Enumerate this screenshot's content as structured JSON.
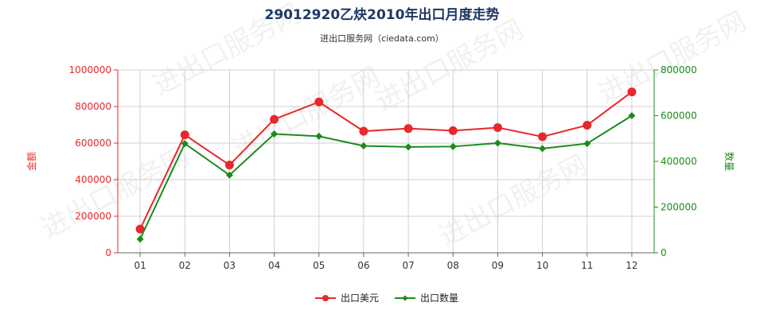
{
  "chart_data": {
    "type": "line",
    "title": "29012920乙炔2010年出口月度走势",
    "subtitle": "进出口服务网（ciedata.com）",
    "categories": [
      "01",
      "02",
      "03",
      "04",
      "05",
      "06",
      "07",
      "08",
      "09",
      "10",
      "11",
      "12"
    ],
    "y_left": {
      "label": "金额",
      "ylim": [
        0,
        1000000
      ],
      "ticks": [
        "0",
        "200000",
        "400000",
        "600000",
        "800000",
        "1000000"
      ],
      "color": "#e8282c"
    },
    "y_right": {
      "label": "数量",
      "ylim": [
        0,
        800000
      ],
      "ticks": [
        "0",
        "200000",
        "400000",
        "600000",
        "800000"
      ],
      "color": "#1a8c1a"
    },
    "series": [
      {
        "name": "出口美元",
        "axis": "left",
        "color": "#e8282c",
        "marker": "circle",
        "values": [
          130000,
          645000,
          480000,
          730000,
          825000,
          665000,
          680000,
          668000,
          685000,
          635000,
          698000,
          880000
        ]
      },
      {
        "name": "出口数量",
        "axis": "right",
        "color": "#1a8c1a",
        "marker": "diamond",
        "values": [
          60000,
          478000,
          340000,
          520000,
          510000,
          468000,
          463000,
          465000,
          480000,
          456000,
          478000,
          600000
        ]
      }
    ],
    "grid": true,
    "legend_position": "bottom-center",
    "watermark": "进出口服务网"
  }
}
